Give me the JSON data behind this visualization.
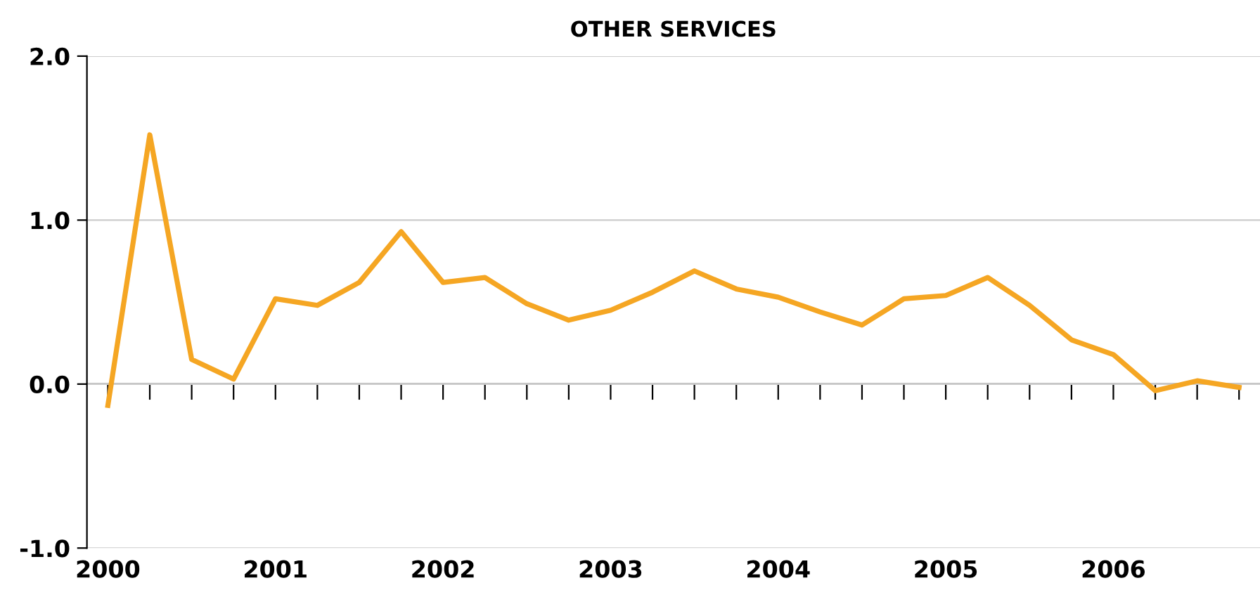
{
  "chart_data": {
    "type": "line",
    "title": "OTHER SERVICES",
    "categories": [
      "2000",
      null,
      null,
      null,
      "2001",
      null,
      null,
      null,
      "2002",
      null,
      null,
      null,
      "2003",
      null,
      null,
      null,
      "2004",
      null,
      null,
      null,
      "2005",
      null,
      null,
      null,
      "2006",
      null,
      null,
      null
    ],
    "series": [
      {
        "color": "#f5a623",
        "values": [
          -0.13,
          1.52,
          0.15,
          0.03,
          0.52,
          0.48,
          0.62,
          0.93,
          0.62,
          0.65,
          0.49,
          0.39,
          0.45,
          0.56,
          0.69,
          0.58,
          0.53,
          0.44,
          0.36,
          0.52,
          0.54,
          0.65,
          0.48,
          0.27,
          0.18,
          -0.04,
          0.02,
          -0.02
        ]
      }
    ],
    "ylim": [
      -1,
      2
    ],
    "yticks": [
      {
        "value": 2,
        "label": "2.0"
      },
      {
        "value": 1,
        "label": "1.0"
      },
      {
        "value": 0,
        "label": "0.0"
      },
      {
        "value": -1,
        "label": "-1.0"
      }
    ],
    "grid": "y",
    "legend": false,
    "marker": "none",
    "line_style": "solid"
  }
}
